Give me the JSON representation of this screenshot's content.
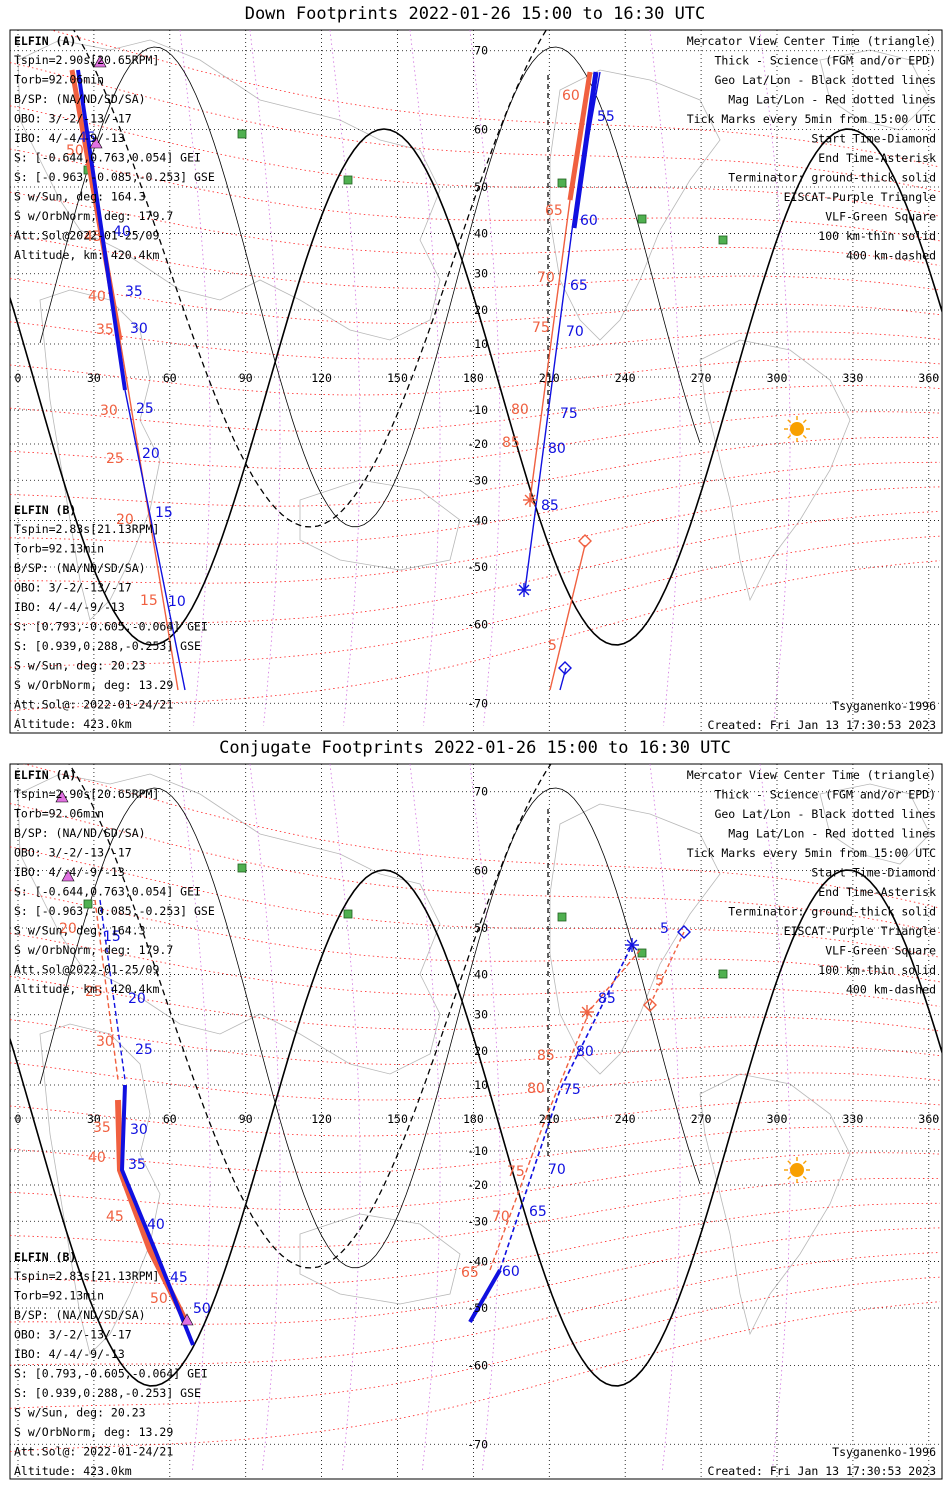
{
  "panels": [
    {
      "title": "Down Footprints 2022-01-26 15:00 to 16:30 UTC",
      "sat_a": {
        "name": "ELFIN (A)",
        "lines": [
          "Tspin=2.90s[20.65RPM]",
          "Torb=92.06min",
          "B/SP: (NA/ND/SD/SA)",
          "OBO: 3/-2/-13/-17",
          "IBO: 4/-4/-9/-13",
          "S: [-0.644,0.763,0.054] GEI",
          "S: [-0.963,-0.085,-0.253] GSE",
          "S w/Sun, deg: 164.3",
          "S w/OrbNorm, deg: 179.7",
          "Att.Sol@2022-01-25/09",
          "Altitude, km: 420.4km"
        ]
      },
      "sat_b": {
        "name": "ELFIN (B)",
        "lines": [
          "Tspin=2.83s[21.13RPM]",
          "Torb=92.13min",
          "B/SP: (NA/ND/SD/SA)",
          "OBO: 3/-2/-13/-17",
          "IBO: 4/-4/-9/-13",
          "S: [0.793,-0.605,-0.064] GEI",
          "S: [0.939,0.288,-0.253] GSE",
          "S w/Sun, deg: 20.23",
          "S w/OrbNorm, deg: 13.29",
          "Att.Sol@: 2022-01-24/21",
          "Altitude: 423.0km"
        ]
      },
      "legend": [
        {
          "text": "Mercator View Center Time (triangle)",
          "color": "#000000"
        },
        {
          "text": "Thick - Science (FGM and/or EPD)",
          "color": "#000000"
        },
        {
          "text": "Geo Lat/Lon - Black dotted lines",
          "color": "#000000"
        },
        {
          "text": "Mag Lat/Lon - Red dotted lines",
          "color": "#ff2020"
        },
        {
          "text": "Tick Marks every 5min from 15:00 UTC",
          "color": "#000000"
        },
        {
          "text": "Start Time-Diamond",
          "color": "#000000"
        },
        {
          "text": "End Time-Asterisk",
          "color": "#000000"
        },
        {
          "text": "Terminator: ground-thick solid",
          "color": "#000000"
        },
        {
          "text": "EISCAT-Purple Triangle",
          "color": "#e070e0"
        },
        {
          "text": "VLF-Green Square",
          "color": "#30a030"
        },
        {
          "text": "100 km-thin solid",
          "color": "#000000"
        },
        {
          "text": "400 km-dashed",
          "color": "#000000"
        }
      ],
      "model": "Tsyganenko-1996",
      "created": "Created: Fri Jan 13 17:30:53 2023",
      "a_marks": [
        "45",
        "40",
        "35",
        "30",
        "25",
        "20",
        "15",
        "10",
        "55",
        "60",
        "65",
        "70",
        "75",
        "80",
        "85"
      ],
      "b_marks": [
        "50",
        "45",
        "40",
        "35",
        "30",
        "25",
        "20",
        "15",
        "60",
        "65",
        "70",
        "75",
        "80",
        "85",
        "5"
      ]
    },
    {
      "title": "Conjugate Footprints 2022-01-26 15:00 to 16:30 UTC",
      "sat_a": {
        "name": "ELFIN (A)",
        "lines": [
          "Tspin=2.90s[20.65RPM]",
          "Torb=92.06min",
          "B/SP: (NA/ND/SD/SA)",
          "OBO: 3/-2/-13/-17",
          "IBO: 4/-4/-9/-13",
          "S: [-0.644,0.763,0.054] GEI",
          "S: [-0.963,-0.085,-0.253] GSE",
          "S w/Sun, deg: 164.3",
          "S w/OrbNorm, deg: 179.7",
          "Att.Sol@2022-01-25/09",
          "Altitude, km: 420.4km"
        ]
      },
      "sat_b": {
        "name": "ELFIN (B)",
        "lines": [
          "Tspin=2.83s[21.13RPM]",
          "Torb=92.13min",
          "B/SP: (NA/ND/SD/SA)",
          "OBO: 3/-2/-13/-17",
          "IBO: 4/-4/-9/-13",
          "S: [0.793,-0.605,-0.064] GEI",
          "S: [0.939,0.288,-0.253] GSE",
          "S w/Sun, deg: 20.23",
          "S w/OrbNorm, deg: 13.29",
          "Att.Sol@: 2022-01-24/21",
          "Altitude: 423.0km"
        ]
      },
      "legend": [
        {
          "text": "Mercator View Center Time (triangle)",
          "color": "#000000"
        },
        {
          "text": "Thick - Science (FGM and/or EPD)",
          "color": "#000000"
        },
        {
          "text": "Geo Lat/Lon - Black dotted lines",
          "color": "#000000"
        },
        {
          "text": "Mag Lat/Lon - Red dotted lines",
          "color": "#ff2020"
        },
        {
          "text": "Tick Marks every 5min from 15:00 UTC",
          "color": "#000000"
        },
        {
          "text": "Start Time-Diamond",
          "color": "#000000"
        },
        {
          "text": "End Time-Asterisk",
          "color": "#000000"
        },
        {
          "text": "Terminator: ground-thick solid",
          "color": "#000000"
        },
        {
          "text": "EISCAT-Purple Triangle",
          "color": "#e070e0"
        },
        {
          "text": "VLF-Green Square",
          "color": "#30a030"
        },
        {
          "text": "100 km-thin solid",
          "color": "#000000"
        },
        {
          "text": "400 km-dashed",
          "color": "#000000"
        }
      ],
      "model": "Tsyganenko-1996",
      "created": "Created: Fri Jan 13 17:30:53 2023",
      "a_marks": [
        "15",
        "20",
        "25",
        "30",
        "35",
        "40",
        "45",
        "50",
        "60",
        "65",
        "70",
        "75",
        "80",
        "85",
        "5"
      ],
      "b_marks": [
        "20",
        "25",
        "30",
        "35",
        "40",
        "45",
        "50",
        "5",
        "65",
        "70",
        "75",
        "80",
        "85"
      ]
    }
  ],
  "axis": {
    "lon_ticks": [
      "0",
      "30",
      "60",
      "90",
      "120",
      "150",
      "180",
      "210",
      "240",
      "270",
      "300",
      "330",
      "360"
    ],
    "lat_ticks": [
      "70",
      "60",
      "50",
      "40",
      "30",
      "20",
      "10",
      "-10",
      "-20",
      "-30",
      "-40",
      "-50",
      "-60",
      "-70"
    ]
  },
  "colors": {
    "sat_a": "#1010e0",
    "sat_b": "#f06040",
    "mag_grid": "#ff2020",
    "eiscat": "#e070e0",
    "vlf": "#30a030",
    "sun": "#f8a000"
  }
}
